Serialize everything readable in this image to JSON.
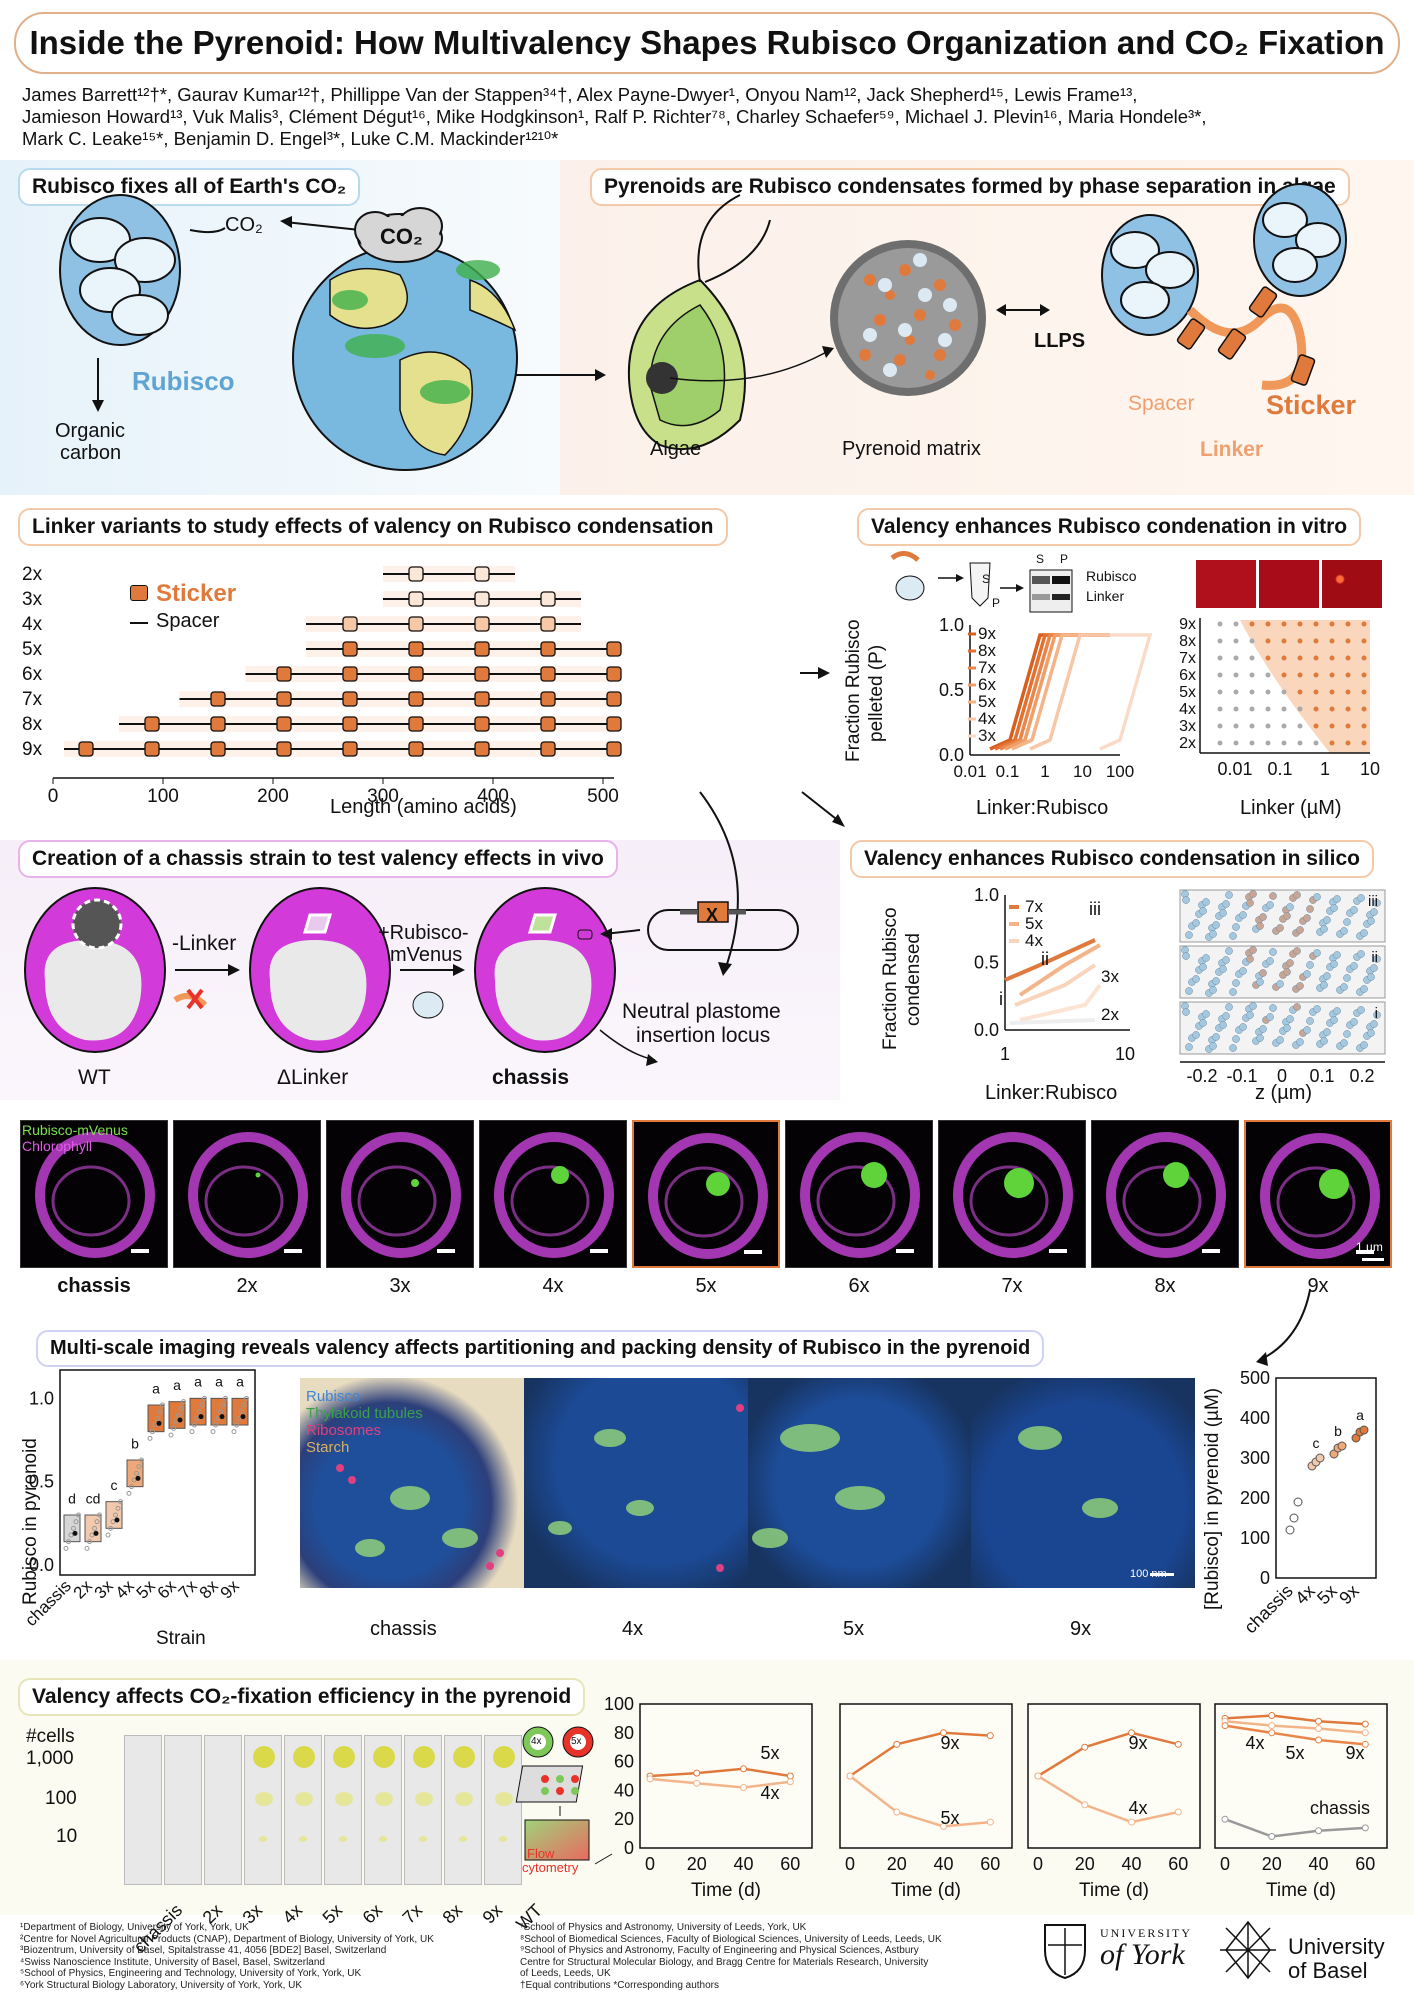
{
  "title": "Inside the Pyrenoid: How Multivalency Shapes Rubisco Organization and CO₂ Fixation",
  "authors_line1": "James Barrett¹²†*, Gaurav Kumar¹²†, Phillippe Van der Stappen³⁴†, Alex Payne-Dwyer¹, Onyou Nam¹², Jack Shepherd¹⁵, Lewis Frame¹³,",
  "authors_line2": "Jamieson Howard¹³, Vuk Malis³, Clément Dégut¹⁶, Mike Hodgkinson¹, Ralf P. Richter⁷⁸, Charley Schaefer⁵⁹, Michael J. Plevin¹⁶, Maria Hondele³*,",
  "authors_line3": "Mark C. Leake¹⁵*, Benjamin D. Engel³*, Luke C.M. Mackinder¹²¹⁰*",
  "sections": {
    "s1": "Rubisco fixes all of Earth's CO₂",
    "s2": "Pyrenoids are Rubisco condensates formed by phase separation in algae",
    "s3": "Linker variants to study effects of valency on Rubisco condensation",
    "s4": "Valency enhances Rubisco condenation in vitro",
    "s5": "Creation of a chassis strain to test valency effects in vivo",
    "s6": "Valency enhances Rubisco condensation in silico",
    "s7": "Multi-scale imaging reveals valency affects partitioning and packing density of Rubisco in the pyrenoid",
    "s8": "Valency affects CO₂-fixation efficiency in the pyrenoid"
  },
  "intro": {
    "co2_small": "CO₂",
    "co2_cloud": "CO₂",
    "rubisco": "Rubisco",
    "organic": "Organic",
    "carbon": "carbon",
    "algae": "Algae",
    "pyrenoid": "Pyrenoid matrix",
    "llps": "LLPS",
    "spacer": "Spacer",
    "sticker": "Sticker",
    "linker": "Linker"
  },
  "linker_chart": {
    "rows": [
      "2x",
      "3x",
      "4x",
      "5x",
      "6x",
      "7x",
      "8x",
      "9x"
    ],
    "legend_sticker": "Sticker",
    "legend_spacer": "Spacer",
    "xlabel": "Length (amino acids)",
    "ticks": [
      "0",
      "100",
      "200",
      "300",
      "400",
      "500"
    ]
  },
  "vitro": {
    "s": "S",
    "p": "P",
    "rubisco": "Rubisco",
    "linker": "Linker",
    "ylabel1": "Fraction Rubisco",
    "ylabel2": "pelleted (P)",
    "xlabel": "Linker:Rubisco",
    "xlabel2": "Linker (µM)",
    "series": [
      "9x",
      "8x",
      "7x",
      "6x",
      "5x",
      "4x",
      "3x"
    ],
    "rows": [
      "9x",
      "8x",
      "7x",
      "6x",
      "5x",
      "4x",
      "3x",
      "2x"
    ],
    "yticks": [
      "1.0",
      "0.5",
      "0.0"
    ],
    "xticks": [
      "0.01",
      "0.1",
      "1",
      "10",
      "100"
    ],
    "xticks2": [
      "0.01",
      "0.1",
      "1",
      "10"
    ]
  },
  "chassis": {
    "minus": "-Linker",
    "plus1": "+Rubisco-",
    "plus2": "mVenus",
    "wt": "WT",
    "dlinker": "ΔLinker",
    "chassis": "chassis",
    "locus1": "Neutral plastome",
    "locus2": "insertion locus",
    "x": "X"
  },
  "silico": {
    "ylabel1": "Fraction Rubisco",
    "ylabel2": "condensed",
    "xlabel": "Linker:Rubisco",
    "zlabel": "z (µm)",
    "series": [
      "7x",
      "5x",
      "4x"
    ],
    "l3x": "3x",
    "l2x": "2x",
    "roman": [
      "iii",
      "ii",
      "i"
    ],
    "yticks": [
      "1.0",
      "0.5",
      "0.0"
    ],
    "xticks": [
      "1",
      "10"
    ],
    "zticks": [
      "-0.2",
      "-0.1",
      "0",
      "0.1",
      "0.2"
    ]
  },
  "micro": {
    "legend_a": "Rubisco-mVenus",
    "legend_b": "Chlorophyll",
    "scale": "1 µm",
    "labels": [
      "chassis",
      "2x",
      "3x",
      "4x",
      "5x",
      "6x",
      "7x",
      "8x",
      "9x"
    ]
  },
  "partition": {
    "ylabel": "Rubisco in pyrenoid",
    "xlabel": "Strain",
    "letters": [
      "d",
      "cd",
      "c",
      "b",
      "a",
      "a",
      "a",
      "a",
      "a"
    ],
    "xticks": [
      "chassis",
      "2x",
      "3x",
      "4x",
      "5x",
      "6x",
      "7x",
      "8x",
      "9x"
    ],
    "yticks": [
      "1.0",
      "0.5",
      "0.0"
    ],
    "tomo_legend": [
      "Rubisco",
      "Thylakoid tubules",
      "Ribosomes",
      "Starch"
    ],
    "tomo_labels": [
      "chassis",
      "4x",
      "5x",
      "9x"
    ],
    "scale": "100 nm",
    "conc_ylabel": "[Rubisco] in pyrenoid (µM)",
    "conc_yticks": [
      "500",
      "400",
      "300",
      "200",
      "100",
      "0"
    ],
    "conc_xticks": [
      "chassis",
      "4x",
      "5x",
      "9x"
    ],
    "conc_letters": [
      "c",
      "b",
      "a"
    ]
  },
  "growth": {
    "cells": "#cells",
    "rows": [
      "1,000",
      "100",
      "10"
    ],
    "plates": [
      "chassis",
      "2x",
      "3x",
      "4x",
      "5x",
      "6x",
      "7x",
      "8x",
      "9x",
      "WT"
    ],
    "flow1": "Flow",
    "flow2": "cytometry",
    "xlabel": "Time (d)",
    "yticks": [
      "100",
      "80",
      "60",
      "40",
      "20",
      "0"
    ],
    "xticks": [
      "0",
      "20",
      "40",
      "60"
    ],
    "p1": [
      "5x",
      "4x"
    ],
    "p2": [
      "9x",
      "5x"
    ],
    "p3": [
      "9x",
      "4x"
    ],
    "p4": [
      "4x",
      "5x",
      "9x",
      "chassis"
    ],
    "c4": "4x",
    "c5": "5x"
  },
  "affiliations_left": [
    "¹Department of Biology, University of York, York, UK",
    "²Centre for Novel Agricultural Products (CNAP), Department of Biology, University of York, UK",
    "³Biozentrum, University of Basel, Spitalstrasse 41, 4056 [BDE2] Basel, Switzerland",
    "⁴Swiss Nanoscience Institute, University of Basel, Basel, Switzerland",
    "⁵School of Physics, Engineering and Technology, University of York, York, UK",
    "⁶York Structural Biology Laboratory, University of York, York, UK"
  ],
  "affiliations_right": [
    "⁷School of Physics and Astronomy, University of Leeds, York, UK",
    "⁸School of Biomedical Sciences, Faculty of Biological Sciences, University of Leeds, Leeds, UK",
    "⁹School of Physics and Astronomy, Faculty of Engineering and Physical Sciences, Astbury",
    "Centre for Structural Molecular Biology, and Bragg Centre for Materials Research, University",
    "of Leeds, Leeds, UK",
    "†Equal contributions *Corresponding authors"
  ],
  "logos": {
    "york1": "UNIVERSITY",
    "york2": "of York",
    "basel1": "University",
    "basel2": "of Basel"
  },
  "colors": {
    "orange": "#e07a3c",
    "light_orange": "#f6c8a6",
    "magenta": "#d23ad9",
    "blue": "#1f4f9a",
    "green": "#7ec85a"
  }
}
